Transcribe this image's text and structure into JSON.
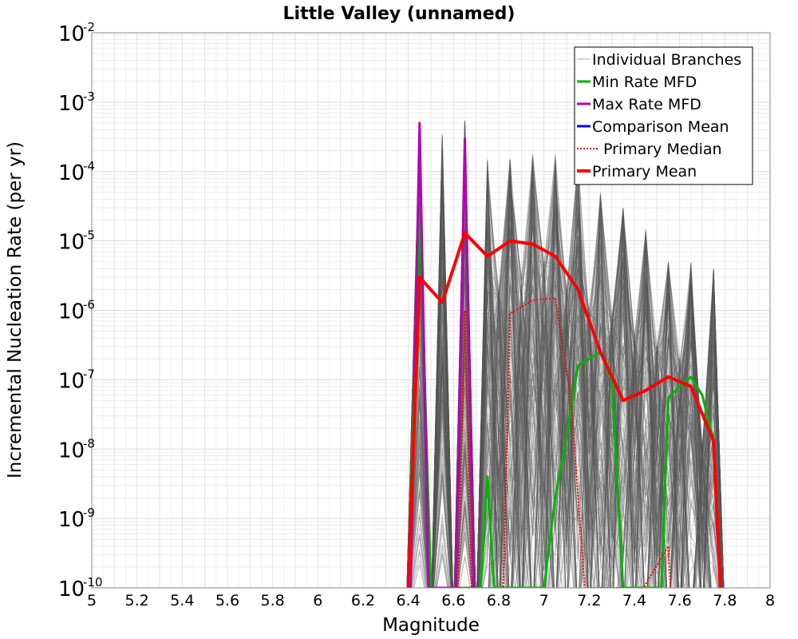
{
  "chart_data": {
    "type": "line",
    "title": "Little Valley (unnamed)",
    "xlabel": "Magnitude",
    "ylabel": "Incremental Nucleation Rate (per yr)",
    "xlim": [
      5,
      8
    ],
    "ylim": [
      1e-10,
      0.01
    ],
    "yscale": "log",
    "grid": true,
    "x_ticks": [
      "5",
      "5.2",
      "5.4",
      "5.6",
      "5.8",
      "6",
      "6.2",
      "6.4",
      "6.6",
      "6.8",
      "7",
      "7.2",
      "7.4",
      "7.6",
      "7.8",
      "8"
    ],
    "y_ticks": [
      {
        "base": "10",
        "exp": "-10",
        "value": 1e-10
      },
      {
        "base": "10",
        "exp": "-9",
        "value": 1e-09
      },
      {
        "base": "10",
        "exp": "-8",
        "value": 1e-08
      },
      {
        "base": "10",
        "exp": "-7",
        "value": 1e-07
      },
      {
        "base": "10",
        "exp": "-6",
        "value": 1e-06
      },
      {
        "base": "10",
        "exp": "-5",
        "value": 1e-05
      },
      {
        "base": "10",
        "exp": "-4",
        "value": 0.0001
      },
      {
        "base": "10",
        "exp": "-3",
        "value": 0.001
      },
      {
        "base": "10",
        "exp": "-2",
        "value": 0.01
      }
    ],
    "legend_position": "top-right",
    "branch_envelope": {
      "name": "Individual Branches",
      "color": "#555555",
      "x": [
        6.39,
        6.45,
        6.5,
        6.55,
        6.6,
        6.65,
        6.7,
        6.75,
        6.8,
        6.85,
        6.9,
        6.95,
        7.0,
        7.05,
        7.1,
        7.15,
        7.2,
        7.25,
        7.3,
        7.35,
        7.4,
        7.45,
        7.5,
        7.55,
        7.6,
        7.65,
        7.7,
        7.75,
        7.8
      ],
      "upper": [
        1e-10,
        0.0005,
        1e-10,
        0.00035,
        1e-10,
        0.00055,
        1e-10,
        0.00015,
        2e-06,
        0.00015,
        3e-06,
        0.00018,
        5e-06,
        0.00019,
        2e-06,
        0.00015,
        1e-06,
        5e-05,
        8e-07,
        3e-05,
        4e-07,
        1.5e-05,
        3e-07,
        5e-06,
        2e-07,
        5e-06,
        1e-08,
        4e-06,
        1e-10
      ]
    },
    "series": [
      {
        "name": "Min Rate MFD",
        "color": "#00b400",
        "style": "solid",
        "x": [
          6.4,
          6.45,
          6.5,
          6.72,
          6.75,
          6.78,
          7.0,
          7.05,
          7.1,
          7.15,
          7.25,
          7.3,
          7.35,
          7.52,
          7.55,
          7.6,
          7.65,
          7.7,
          7.75,
          7.78
        ],
        "y": [
          1e-10,
          3e-05,
          1e-10,
          1e-10,
          4e-09,
          1e-10,
          1e-10,
          2e-09,
          1.5e-08,
          1.6e-07,
          2.5e-07,
          1e-07,
          1e-10,
          1e-10,
          5.5e-08,
          8e-08,
          1.1e-07,
          6e-08,
          1.3e-08,
          1e-10
        ]
      },
      {
        "name": "Max Rate MFD",
        "color": "#b400b4",
        "style": "solid",
        "x": [
          6.41,
          6.45,
          6.49,
          6.61,
          6.65,
          6.69
        ],
        "y": [
          1e-10,
          0.0005,
          1e-10,
          1e-10,
          0.0003,
          1e-10
        ]
      },
      {
        "name": "Comparison Mean",
        "color": "#0000ff",
        "style": "solid",
        "x": [],
        "y": []
      },
      {
        "name": "Primary Median",
        "color": "#ff0000",
        "style": "dotted",
        "x": [
          6.62,
          6.65,
          6.68,
          6.82,
          6.85,
          6.95,
          7.05,
          7.12,
          7.18,
          7.44,
          7.55,
          7.56
        ],
        "y": [
          1e-10,
          1e-06,
          1e-10,
          1e-10,
          9e-07,
          1.4e-06,
          1.5e-06,
          5e-08,
          1e-10,
          1e-10,
          4e-10,
          1e-10
        ]
      },
      {
        "name": "Primary Mean",
        "color": "#ff0000",
        "style": "solid",
        "x": [
          6.4,
          6.45,
          6.55,
          6.65,
          6.75,
          6.85,
          6.95,
          7.05,
          7.15,
          7.25,
          7.35,
          7.45,
          7.55,
          7.65,
          7.75,
          7.78
        ],
        "y": [
          1e-10,
          3e-06,
          1.3e-06,
          1.3e-05,
          6e-06,
          1e-05,
          9e-06,
          6e-06,
          2e-06,
          2.5e-07,
          5e-08,
          7e-08,
          1.1e-07,
          8e-08,
          1.3e-08,
          1e-10
        ]
      }
    ],
    "legend": [
      {
        "name": "Individual Branches",
        "color": "#aaaaaa",
        "style": "solid",
        "width": 1
      },
      {
        "name": "Min Rate MFD",
        "color": "#00b400",
        "style": "solid",
        "width": 3
      },
      {
        "name": "Max Rate MFD",
        "color": "#b400b4",
        "style": "solid",
        "width": 3
      },
      {
        "name": "Comparison Mean",
        "color": "#0000ff",
        "style": "solid",
        "width": 3
      },
      {
        "name": "Primary Median",
        "color": "#ff0000",
        "style": "dotted",
        "width": 2
      },
      {
        "name": "Primary Mean",
        "color": "#ff0000",
        "style": "solid",
        "width": 4
      }
    ]
  }
}
